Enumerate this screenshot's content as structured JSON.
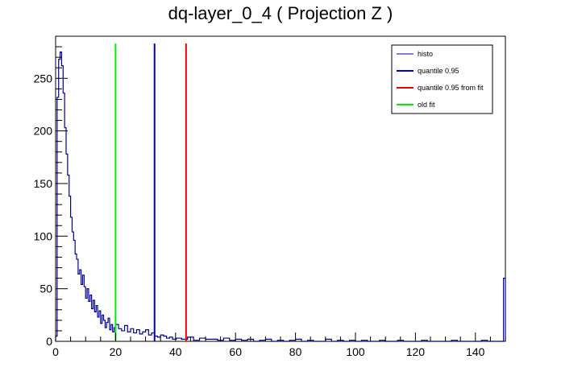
{
  "chart_data": {
    "type": "line",
    "title": "dq-layer_0_4 ( Projection Z )",
    "xlabel": "",
    "ylabel": "",
    "xlim": [
      0,
      150
    ],
    "ylim": [
      0,
      290
    ],
    "grid": false,
    "legend_placement": "top-right",
    "x_ticks": [
      0,
      20,
      40,
      60,
      80,
      100,
      120,
      140
    ],
    "y_ticks": [
      0,
      50,
      100,
      150,
      200,
      250
    ],
    "series": [
      {
        "name": "histo",
        "color": "#000099",
        "style": "histogram-step",
        "x": [
          0.25,
          0.75,
          1.25,
          1.75,
          2.25,
          2.75,
          3.25,
          3.75,
          4.25,
          4.75,
          5.25,
          5.75,
          6.25,
          6.75,
          7.25,
          7.75,
          8.25,
          8.75,
          9.25,
          9.75,
          10.25,
          10.75,
          11.25,
          11.75,
          12.25,
          12.75,
          13.25,
          13.75,
          14.25,
          14.75,
          15.25,
          15.75,
          16.25,
          16.75,
          17.25,
          17.75,
          18.25,
          18.75,
          19.25,
          19.75,
          20.5,
          21.5,
          22.5,
          23.5,
          24.5,
          25.5,
          26.5,
          27.5,
          28.5,
          29.5,
          30.5,
          31.5,
          32.5,
          33.5,
          34.5,
          35.5,
          36.5,
          37.5,
          38.5,
          39.5,
          41,
          43,
          45,
          47,
          49,
          51,
          53,
          55,
          57,
          59,
          61,
          63,
          65,
          67,
          69,
          71,
          73,
          75,
          77,
          79,
          81,
          83,
          85,
          87,
          89,
          91,
          93,
          95,
          97,
          99,
          101,
          103,
          105,
          107,
          109,
          111,
          113,
          115,
          117,
          119,
          121,
          123,
          125,
          127,
          129,
          131,
          133,
          135,
          137,
          139,
          141,
          143,
          145,
          147,
          149,
          149.75
        ],
        "y": [
          5,
          232,
          268,
          275,
          262,
          236,
          203,
          178,
          158,
          138,
          118,
          104,
          96,
          83,
          78,
          64,
          68,
          54,
          63,
          52,
          41,
          50,
          38,
          44,
          31,
          39,
          28,
          34,
          23,
          29,
          17,
          25,
          20,
          13,
          18,
          22,
          11,
          16,
          9,
          13,
          16,
          12,
          10,
          15,
          9,
          12,
          8,
          11,
          7,
          9,
          11,
          6,
          8,
          5,
          4,
          6,
          5,
          3,
          4,
          2,
          3,
          2,
          4,
          1,
          3,
          2,
          2,
          1,
          3,
          1,
          2,
          1,
          2,
          0,
          1,
          2,
          0,
          1,
          0,
          1,
          2,
          0,
          1,
          0,
          0,
          2,
          0,
          1,
          0,
          1,
          0,
          1,
          0,
          0,
          1,
          0,
          0,
          1,
          0,
          0,
          0,
          1,
          0,
          0,
          0,
          0,
          1,
          0,
          0,
          0,
          0,
          1,
          0,
          0,
          0,
          60
        ]
      }
    ],
    "markers": [
      {
        "name": "quantile 0.95",
        "x": 33,
        "color": "#0000cc",
        "y_top": 283
      },
      {
        "name": "quantile 0.95 from fit",
        "x": 43.5,
        "color": "#ee0000",
        "y_top": 283
      },
      {
        "name": "old fit",
        "x": 20,
        "color": "#00ee00",
        "y_top": 283
      }
    ],
    "legend": [
      {
        "label": "histo",
        "color": "#000099",
        "thick": false
      },
      {
        "label": "quantile 0.95",
        "color": "#0000cc",
        "thick": true
      },
      {
        "label": "quantile 0.95 from fit",
        "color": "#ee0000",
        "thick": true
      },
      {
        "label": "old fit",
        "color": "#00ee00",
        "thick": true
      }
    ]
  }
}
